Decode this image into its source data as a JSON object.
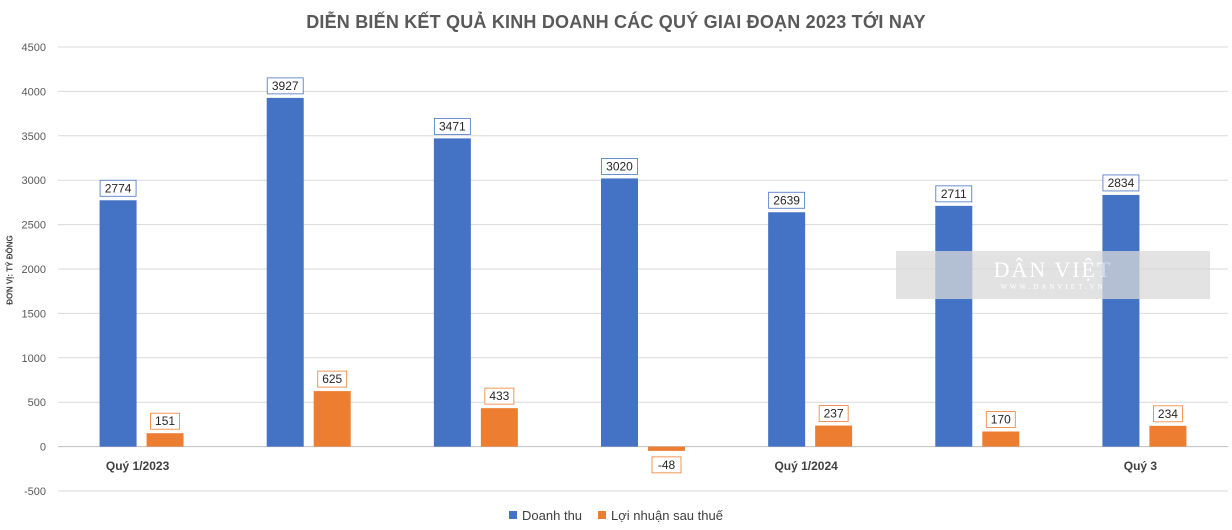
{
  "chart_data": {
    "type": "bar",
    "title": "DIỄN BIẾN KẾT QUẢ KINH DOANH CÁC QUÝ GIAI ĐOẠN 2023 TỚI NAY",
    "ylabel": "ĐƠN VỊ: TỶ ĐỒNG",
    "xlabel": "",
    "categories": [
      "Quý 1/2023",
      "",
      "",
      "",
      "Quý 1/2024",
      "",
      "Quý 3"
    ],
    "series": [
      {
        "name": "Doanh thu",
        "color": "#4472c4",
        "values": [
          2774,
          3927,
          3471,
          3020,
          2639,
          2711,
          2834
        ]
      },
      {
        "name": "Lợi nhuận sau thuế",
        "color": "#ed7d31",
        "values": [
          151,
          625,
          433,
          -48,
          237,
          170,
          234
        ]
      }
    ],
    "ylim": [
      -500,
      4500
    ],
    "yticks": [
      -500,
      0,
      500,
      1000,
      1500,
      2000,
      2500,
      3000,
      3500,
      4000,
      4500
    ],
    "grid": true,
    "legend_position": "bottom"
  },
  "watermark": {
    "main": "DÂN VIỆT",
    "sub": "WWW.DANVIET.VN"
  }
}
